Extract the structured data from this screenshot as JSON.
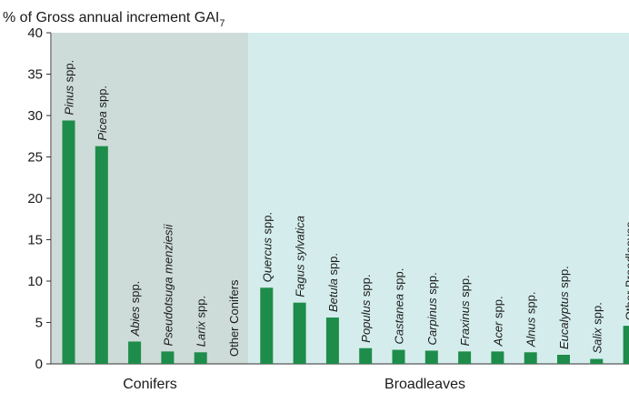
{
  "chart_data": {
    "type": "bar",
    "title": "% of Gross annual increment GAI",
    "title_subscript": "7",
    "ylim": [
      0,
      40
    ],
    "yticks": [
      "0",
      "5",
      "10",
      "15",
      "20",
      "25",
      "30",
      "35",
      "40"
    ],
    "groups": [
      {
        "name": "Conifers",
        "background": "#cddcd8",
        "categories": [
          {
            "genus": "Pinus",
            "suffix": " spp.",
            "value": 29.4
          },
          {
            "genus": "Picea",
            "suffix": " spp.",
            "value": 26.3
          },
          {
            "genus": "Abies",
            "suffix": " spp.",
            "value": 2.7
          },
          {
            "genus": "Pseudotsuga menziesii",
            "suffix": "",
            "value": 1.5
          },
          {
            "genus": "Larix",
            "suffix": " spp.",
            "value": 1.4
          },
          {
            "genus": "",
            "suffix": "Other Conifers",
            "value": 0.0
          }
        ]
      },
      {
        "name": "Broadleaves",
        "background": "#d4edec",
        "categories": [
          {
            "genus": "Quercus",
            "suffix": " spp.",
            "value": 9.2
          },
          {
            "genus": "Fagus sylvatica",
            "suffix": "",
            "value": 7.4
          },
          {
            "genus": "Betula",
            "suffix": " spp.",
            "value": 5.6
          },
          {
            "genus": "Populus",
            "suffix": " spp.",
            "value": 1.9
          },
          {
            "genus": "Castanea",
            "suffix": " spp.",
            "value": 1.7
          },
          {
            "genus": "Carpinus",
            "suffix": " spp.",
            "value": 1.6
          },
          {
            "genus": "Fraxinus",
            "suffix": " spp.",
            "value": 1.5
          },
          {
            "genus": "Acer",
            "suffix": " spp.",
            "value": 1.5
          },
          {
            "genus": "Alnus",
            "suffix": " spp.",
            "value": 1.4
          },
          {
            "genus": "Eucalyptus",
            "suffix": " spp.",
            "value": 1.1
          },
          {
            "genus": "Salix",
            "suffix": " spp.",
            "value": 0.6
          },
          {
            "genus": "",
            "suffix": "Other Broadleaves",
            "value": 4.6
          }
        ]
      }
    ],
    "bar_color": "#1e8c4a",
    "grid": false,
    "legend": "none"
  }
}
